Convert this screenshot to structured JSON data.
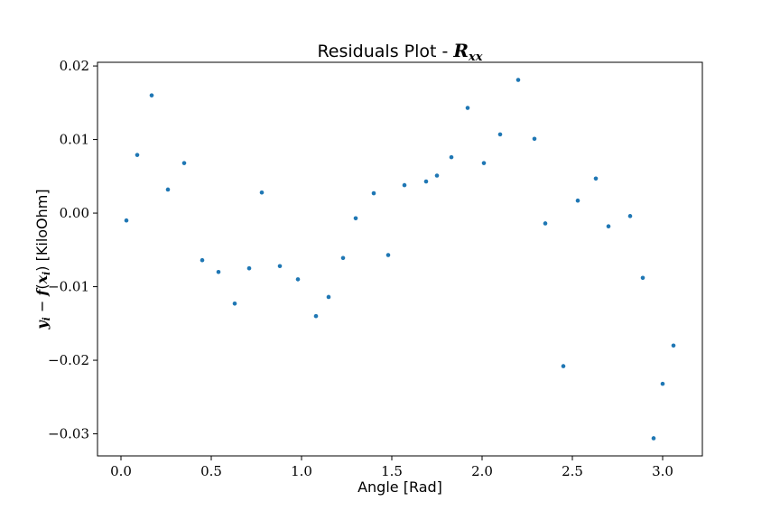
{
  "chart_data": {
    "type": "scatter",
    "title_text": "Residuals Plot - ",
    "title_math_main": "R",
    "title_math_sub": "xx",
    "xlabel": "Angle [Rad]",
    "ylabel_math_y": "y",
    "ylabel_math_i": "i",
    "ylabel_math_minus": " − ",
    "ylabel_math_f": "f",
    "ylabel_math_open": "(",
    "ylabel_math_x": "x",
    "ylabel_math_close": ")",
    "ylabel_unit": " [KiloOhm]",
    "xlim": [
      -0.13,
      3.22
    ],
    "ylim": [
      -0.033,
      0.0205
    ],
    "x_ticks": [
      0.0,
      0.5,
      1.0,
      1.5,
      2.0,
      2.5,
      3.0
    ],
    "x_tick_labels": [
      "0.0",
      "0.5",
      "1.0",
      "1.5",
      "2.0",
      "2.5",
      "3.0"
    ],
    "y_ticks": [
      -0.03,
      -0.02,
      -0.01,
      0.0,
      0.01,
      0.02
    ],
    "y_tick_labels": [
      "−0.03",
      "−0.02",
      "−0.01",
      "0.00",
      "0.01",
      "0.02"
    ],
    "grid": false,
    "marker_color": "#1f77b4",
    "points": [
      {
        "x": 0.03,
        "y": -0.001
      },
      {
        "x": 0.09,
        "y": 0.0079
      },
      {
        "x": 0.17,
        "y": 0.016
      },
      {
        "x": 0.26,
        "y": 0.0032
      },
      {
        "x": 0.35,
        "y": 0.0068
      },
      {
        "x": 0.45,
        "y": -0.0064
      },
      {
        "x": 0.54,
        "y": -0.008
      },
      {
        "x": 0.63,
        "y": -0.0123
      },
      {
        "x": 0.71,
        "y": -0.0075
      },
      {
        "x": 0.78,
        "y": 0.0028
      },
      {
        "x": 0.88,
        "y": -0.0072
      },
      {
        "x": 0.98,
        "y": -0.009
      },
      {
        "x": 1.08,
        "y": -0.014
      },
      {
        "x": 1.15,
        "y": -0.0114
      },
      {
        "x": 1.23,
        "y": -0.0061
      },
      {
        "x": 1.3,
        "y": -0.0007
      },
      {
        "x": 1.4,
        "y": 0.0027
      },
      {
        "x": 1.48,
        "y": -0.0057
      },
      {
        "x": 1.57,
        "y": 0.0038
      },
      {
        "x": 1.69,
        "y": 0.0043
      },
      {
        "x": 1.75,
        "y": 0.0051
      },
      {
        "x": 1.83,
        "y": 0.0076
      },
      {
        "x": 1.92,
        "y": 0.0143
      },
      {
        "x": 2.01,
        "y": 0.0068
      },
      {
        "x": 2.1,
        "y": 0.0107
      },
      {
        "x": 2.2,
        "y": 0.0181
      },
      {
        "x": 2.29,
        "y": 0.0101
      },
      {
        "x": 2.35,
        "y": -0.0014
      },
      {
        "x": 2.45,
        "y": -0.0208
      },
      {
        "x": 2.53,
        "y": 0.0017
      },
      {
        "x": 2.63,
        "y": 0.0047
      },
      {
        "x": 2.7,
        "y": -0.0018
      },
      {
        "x": 2.82,
        "y": -0.0004
      },
      {
        "x": 2.89,
        "y": -0.0088
      },
      {
        "x": 2.95,
        "y": -0.0306
      },
      {
        "x": 3.0,
        "y": -0.0232
      },
      {
        "x": 3.06,
        "y": -0.018
      }
    ]
  }
}
